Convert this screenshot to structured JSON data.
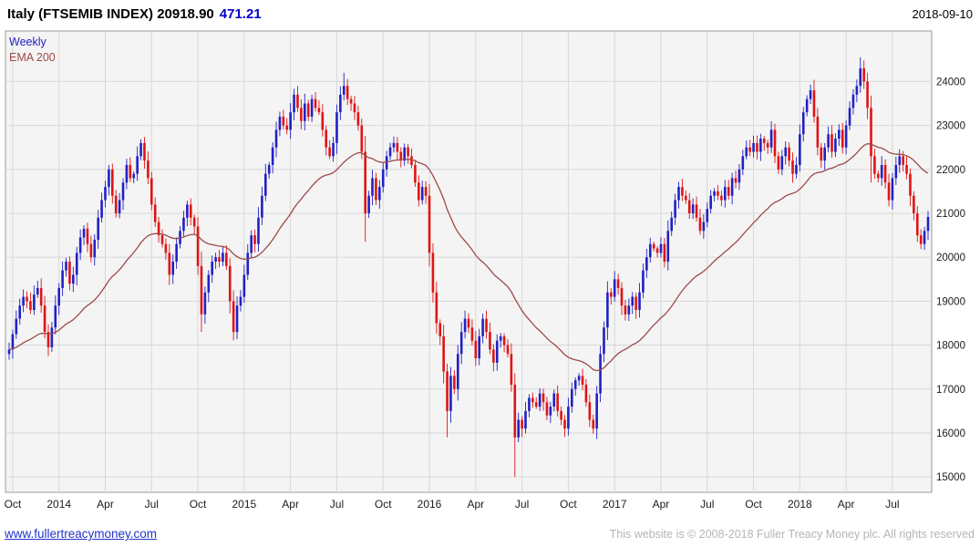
{
  "header": {
    "title": "Italy (FTSEMIB INDEX)",
    "last": "20918.90",
    "change": "471.21",
    "date": "2018-09-10"
  },
  "legend": {
    "weekly": "Weekly",
    "ema": "EMA 200"
  },
  "footer": {
    "site": "www.fullertreacymoney.com",
    "copyright": "This website is © 2008-2018 Fuller Treacy Money plc. All rights reserved"
  },
  "colors": {
    "up": "#2121c4",
    "down": "#e01414",
    "ema": "#9e4a4a",
    "grid": "#d8d8d8",
    "plot_bg": "#f4f4f4",
    "plot_border": "#9a9a9a",
    "axis_text": "#1c1c1c",
    "change": "#0000cc",
    "link": "#2233cc",
    "copyright": "#b5b5b5"
  },
  "chart_data": {
    "type": "candlestick",
    "interval": "weekly",
    "title": "Italy (FTSEMIB INDEX)",
    "last_close": 20918.9,
    "change": 471.21,
    "as_of": "2018-09-10",
    "legend": [
      "Weekly",
      "EMA 200"
    ],
    "ema_period_weeks": 40,
    "ylim": [
      14650,
      25150
    ],
    "yticks": [
      15000,
      16000,
      17000,
      18000,
      19000,
      20000,
      21000,
      22000,
      23000,
      24000
    ],
    "xticks": [
      {
        "label": "Oct",
        "week": 1
      },
      {
        "label": "2014",
        "week": 14
      },
      {
        "label": "Apr",
        "week": 27
      },
      {
        "label": "Jul",
        "week": 40
      },
      {
        "label": "Oct",
        "week": 53
      },
      {
        "label": "2015",
        "week": 66
      },
      {
        "label": "Apr",
        "week": 79
      },
      {
        "label": "Jul",
        "week": 92
      },
      {
        "label": "Oct",
        "week": 105
      },
      {
        "label": "2016",
        "week": 118
      },
      {
        "label": "Apr",
        "week": 131
      },
      {
        "label": "Jul",
        "week": 144
      },
      {
        "label": "Oct",
        "week": 157
      },
      {
        "label": "2017",
        "week": 170
      },
      {
        "label": "Apr",
        "week": 183
      },
      {
        "label": "Jul",
        "week": 196
      },
      {
        "label": "Oct",
        "week": 209
      },
      {
        "label": "2018",
        "week": 222
      },
      {
        "label": "Apr",
        "week": 235
      },
      {
        "label": "Jul",
        "week": 248
      }
    ],
    "first_open": 17800,
    "closes": [
      17900,
      18250,
      18600,
      18900,
      19100,
      19000,
      18800,
      19150,
      19300,
      18900,
      18300,
      17950,
      18400,
      18900,
      19300,
      19700,
      19900,
      19400,
      19600,
      20100,
      20450,
      20650,
      20300,
      20000,
      20400,
      20900,
      21300,
      21600,
      22000,
      21400,
      21000,
      21300,
      21700,
      22100,
      21800,
      21900,
      22300,
      22600,
      22200,
      21800,
      21200,
      20800,
      20500,
      20300,
      20100,
      19600,
      19900,
      20300,
      20600,
      20900,
      21200,
      20900,
      20700,
      19800,
      18700,
      19200,
      19600,
      19900,
      20000,
      19900,
      20100,
      19800,
      19000,
      18300,
      18900,
      19100,
      19600,
      20100,
      20500,
      20300,
      20900,
      21400,
      21900,
      22100,
      22500,
      22900,
      23200,
      23000,
      22900,
      23300,
      23700,
      23400,
      23100,
      23500,
      23200,
      23600,
      23400,
      23300,
      22900,
      22500,
      22300,
      22600,
      23300,
      23700,
      23900,
      23600,
      23500,
      23300,
      23000,
      22400,
      21000,
      21400,
      21800,
      21300,
      21600,
      22000,
      22300,
      22500,
      22600,
      22400,
      22200,
      22500,
      22300,
      22100,
      21700,
      21300,
      21600,
      21400,
      20100,
      19200,
      18500,
      18200,
      17400,
      16500,
      17300,
      17000,
      17800,
      18300,
      18600,
      18400,
      18100,
      17700,
      18200,
      18600,
      18300,
      17900,
      17600,
      18100,
      18200,
      18000,
      17800,
      17100,
      15900,
      16300,
      16100,
      16500,
      16800,
      16700,
      16600,
      16900,
      16700,
      16400,
      16600,
      16900,
      16500,
      16300,
      16100,
      16600,
      17000,
      17200,
      17300,
      17100,
      16700,
      16300,
      16100,
      16900,
      17800,
      18400,
      19200,
      19100,
      19500,
      19300,
      18900,
      18700,
      18900,
      19100,
      18800,
      19200,
      19700,
      20000,
      20300,
      20200,
      20100,
      20300,
      19900,
      20600,
      20900,
      21300,
      21600,
      21400,
      21300,
      21000,
      21200,
      20900,
      20600,
      20800,
      21100,
      21400,
      21500,
      21400,
      21300,
      21600,
      21400,
      21800,
      21700,
      22000,
      22300,
      22500,
      22400,
      22600,
      22400,
      22700,
      22600,
      22500,
      22900,
      22300,
      22000,
      22300,
      22500,
      22200,
      21900,
      22100,
      22800,
      23300,
      23600,
      23800,
      23200,
      22500,
      22200,
      22500,
      22800,
      22400,
      22700,
      22900,
      22500,
      23000,
      23400,
      23700,
      23900,
      24300,
      24000,
      23400,
      22300,
      21900,
      21800,
      22100,
      21700,
      21300,
      21800,
      22100,
      22300,
      22100,
      21900,
      21400,
      21000,
      20500,
      20300,
      20600,
      20918.9
    ],
    "wick_overrides": {
      "54": {
        "low": 18300
      },
      "94": {
        "high": 24200
      },
      "100": {
        "low": 20350
      },
      "123": {
        "low": 15900
      },
      "142": {
        "low": 15000
      },
      "239": {
        "high": 24550
      },
      "242": {
        "low": 21700
      }
    }
  }
}
